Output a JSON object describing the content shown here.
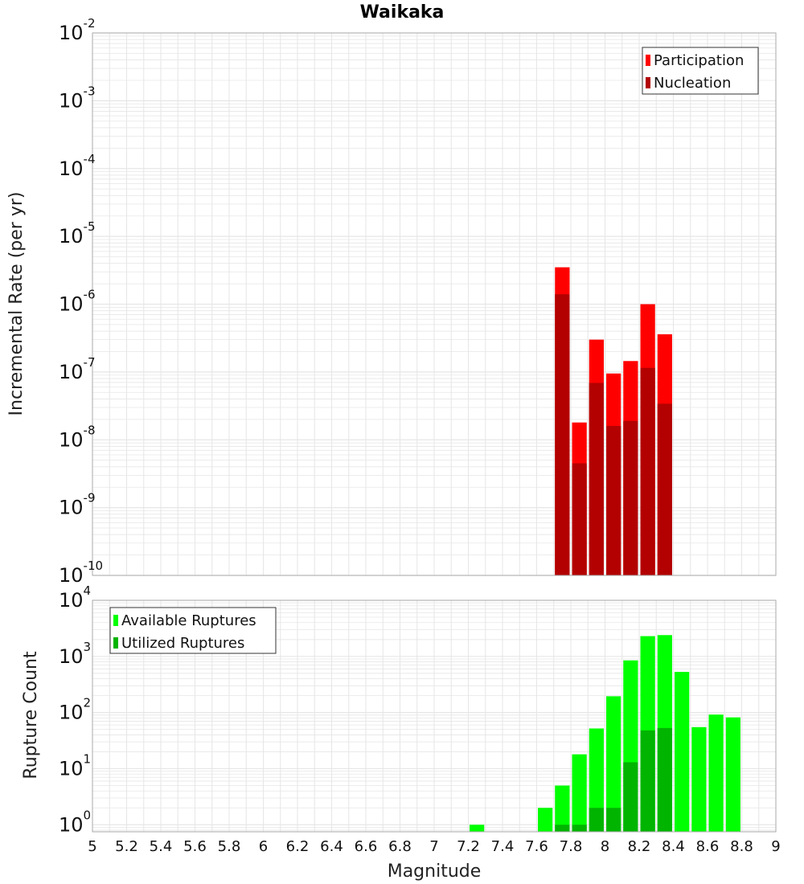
{
  "chart_data": [
    {
      "type": "bar",
      "title": "Waikaka",
      "xlabel": "",
      "ylabel": "Incremental Rate (per yr)",
      "xlim": [
        5,
        9
      ],
      "ylim": [
        1e-10,
        0.01
      ],
      "y_scale": "log",
      "grid": true,
      "legend_position": "top-right",
      "bin_width": 0.1,
      "series": [
        {
          "name": "Participation",
          "color": "#ff0000",
          "x": [
            7.75,
            7.85,
            7.95,
            8.05,
            8.15,
            8.25,
            8.35
          ],
          "values": [
            3.5e-06,
            1.8e-08,
            3e-07,
            9.5e-08,
            1.45e-07,
            1e-06,
            3.6e-07
          ]
        },
        {
          "name": "Nucleation",
          "color": "#b30000",
          "x": [
            7.75,
            7.85,
            7.95,
            8.05,
            8.15,
            8.25,
            8.35
          ],
          "values": [
            1.4e-06,
            4.5e-09,
            6.9e-08,
            1.6e-08,
            1.9e-08,
            1.15e-07,
            3.4e-08
          ]
        }
      ]
    },
    {
      "type": "bar",
      "title": "",
      "xlabel": "Magnitude",
      "ylabel": "Rupture Count",
      "xlim": [
        5,
        9
      ],
      "ylim": [
        0.75,
        10000
      ],
      "y_scale": "log",
      "grid": true,
      "legend_position": "top-left",
      "bin_width": 0.1,
      "series": [
        {
          "name": "Available Ruptures",
          "color": "#00ff00",
          "x": [
            7.25,
            7.65,
            7.75,
            7.85,
            7.95,
            8.05,
            8.15,
            8.25,
            8.35,
            8.45,
            8.55,
            8.65,
            8.75
          ],
          "values": [
            1,
            2,
            5,
            18,
            52,
            195,
            850,
            2300,
            2400,
            530,
            55,
            92,
            82
          ]
        },
        {
          "name": "Utilized Ruptures",
          "color": "#00b400",
          "x": [
            7.75,
            7.85,
            7.95,
            8.05,
            8.15,
            8.25,
            8.35
          ],
          "values": [
            1,
            1,
            2,
            2,
            13,
            48,
            53
          ]
        }
      ]
    }
  ],
  "x_ticks": [
    "5",
    "5.2",
    "5.4",
    "5.6",
    "5.8",
    "6",
    "6.2",
    "6.4",
    "6.6",
    "6.8",
    "7",
    "7.2",
    "7.4",
    "7.6",
    "7.8",
    "8",
    "8.2",
    "8.4",
    "8.6",
    "8.8",
    "9"
  ],
  "top_y_ticks": [
    {
      "base": "10",
      "exp": "-10",
      "value": 1e-10
    },
    {
      "base": "10",
      "exp": "-9",
      "value": 1e-09
    },
    {
      "base": "10",
      "exp": "-8",
      "value": 1e-08
    },
    {
      "base": "10",
      "exp": "-7",
      "value": 1e-07
    },
    {
      "base": "10",
      "exp": "-6",
      "value": 1e-06
    },
    {
      "base": "10",
      "exp": "-5",
      "value": 1e-05
    },
    {
      "base": "10",
      "exp": "-4",
      "value": 0.0001
    },
    {
      "base": "10",
      "exp": "-3",
      "value": 0.001
    },
    {
      "base": "10",
      "exp": "-2",
      "value": 0.01
    }
  ],
  "bottom_y_ticks": [
    {
      "base": "10",
      "exp": "0",
      "value": 1
    },
    {
      "base": "10",
      "exp": "1",
      "value": 10
    },
    {
      "base": "10",
      "exp": "2",
      "value": 100
    },
    {
      "base": "10",
      "exp": "3",
      "value": 1000
    },
    {
      "base": "10",
      "exp": "4",
      "value": 10000
    }
  ],
  "colors": {
    "grid": "#e6e6e6",
    "plot_border": "#aaaaaa",
    "bar_gap": "#ffffff"
  }
}
